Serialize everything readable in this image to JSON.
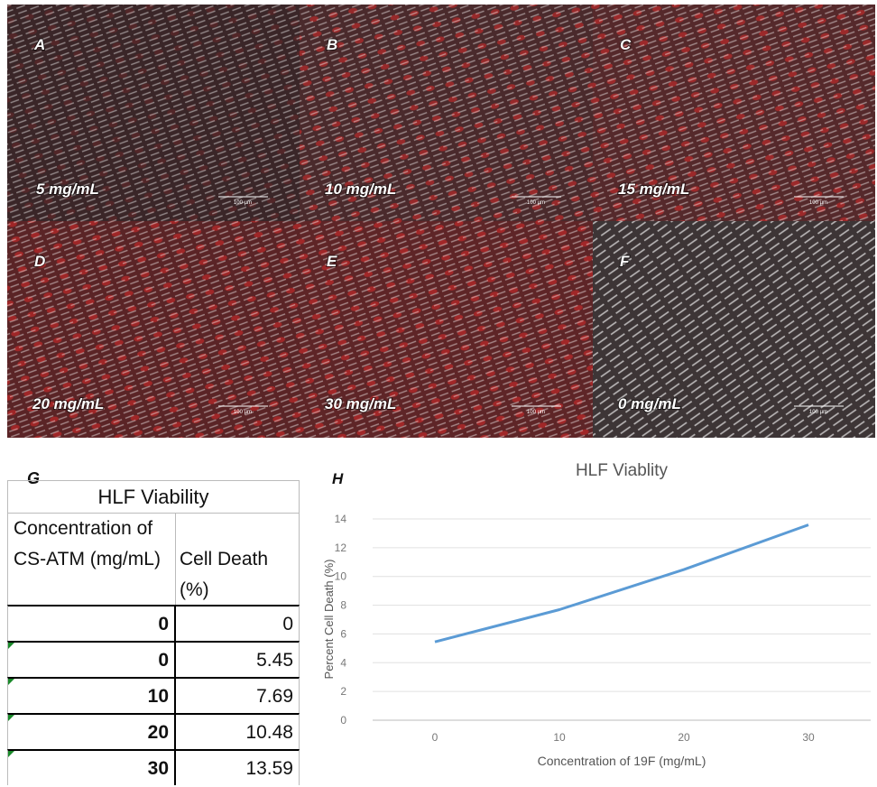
{
  "panels": [
    {
      "letter": "A",
      "concentration": "5 mg/mL",
      "scale_label": "100 µm"
    },
    {
      "letter": "B",
      "concentration": "10 mg/mL",
      "scale_label": "100 µm"
    },
    {
      "letter": "C",
      "concentration": "15 mg/mL",
      "scale_label": "100 µm"
    },
    {
      "letter": "D",
      "concentration": "20 mg/mL",
      "scale_label": "100 µm"
    },
    {
      "letter": "E",
      "concentration": "30 mg/mL",
      "scale_label": "100 µm"
    },
    {
      "letter": "F",
      "concentration": "0 mg/mL",
      "scale_label": "100 µm"
    }
  ],
  "table": {
    "letter": "G",
    "title": "HLF Viability",
    "headers": [
      "Concentration of CS-ATM (mg/mL)",
      "Cell Death (%)"
    ],
    "rows": [
      [
        "0",
        "0"
      ],
      [
        "0",
        "5.45"
      ],
      [
        "10",
        "7.69"
      ],
      [
        "20",
        "10.48"
      ],
      [
        "30",
        "13.59"
      ]
    ]
  },
  "chart_data": {
    "type": "line",
    "letter": "H",
    "title": "HLF Viablity",
    "x_label": "Concentration  of 19F  (mg/mL)",
    "y_label": "Percent Cell Death (%)",
    "categories": [
      "0",
      "10",
      "20",
      "30"
    ],
    "values": [
      5.45,
      7.69,
      10.48,
      13.59
    ],
    "color": "#5b9bd5",
    "ylim": [
      0,
      14
    ],
    "yticks": [
      0,
      2,
      4,
      6,
      8,
      10,
      12,
      14
    ],
    "grid": true
  }
}
